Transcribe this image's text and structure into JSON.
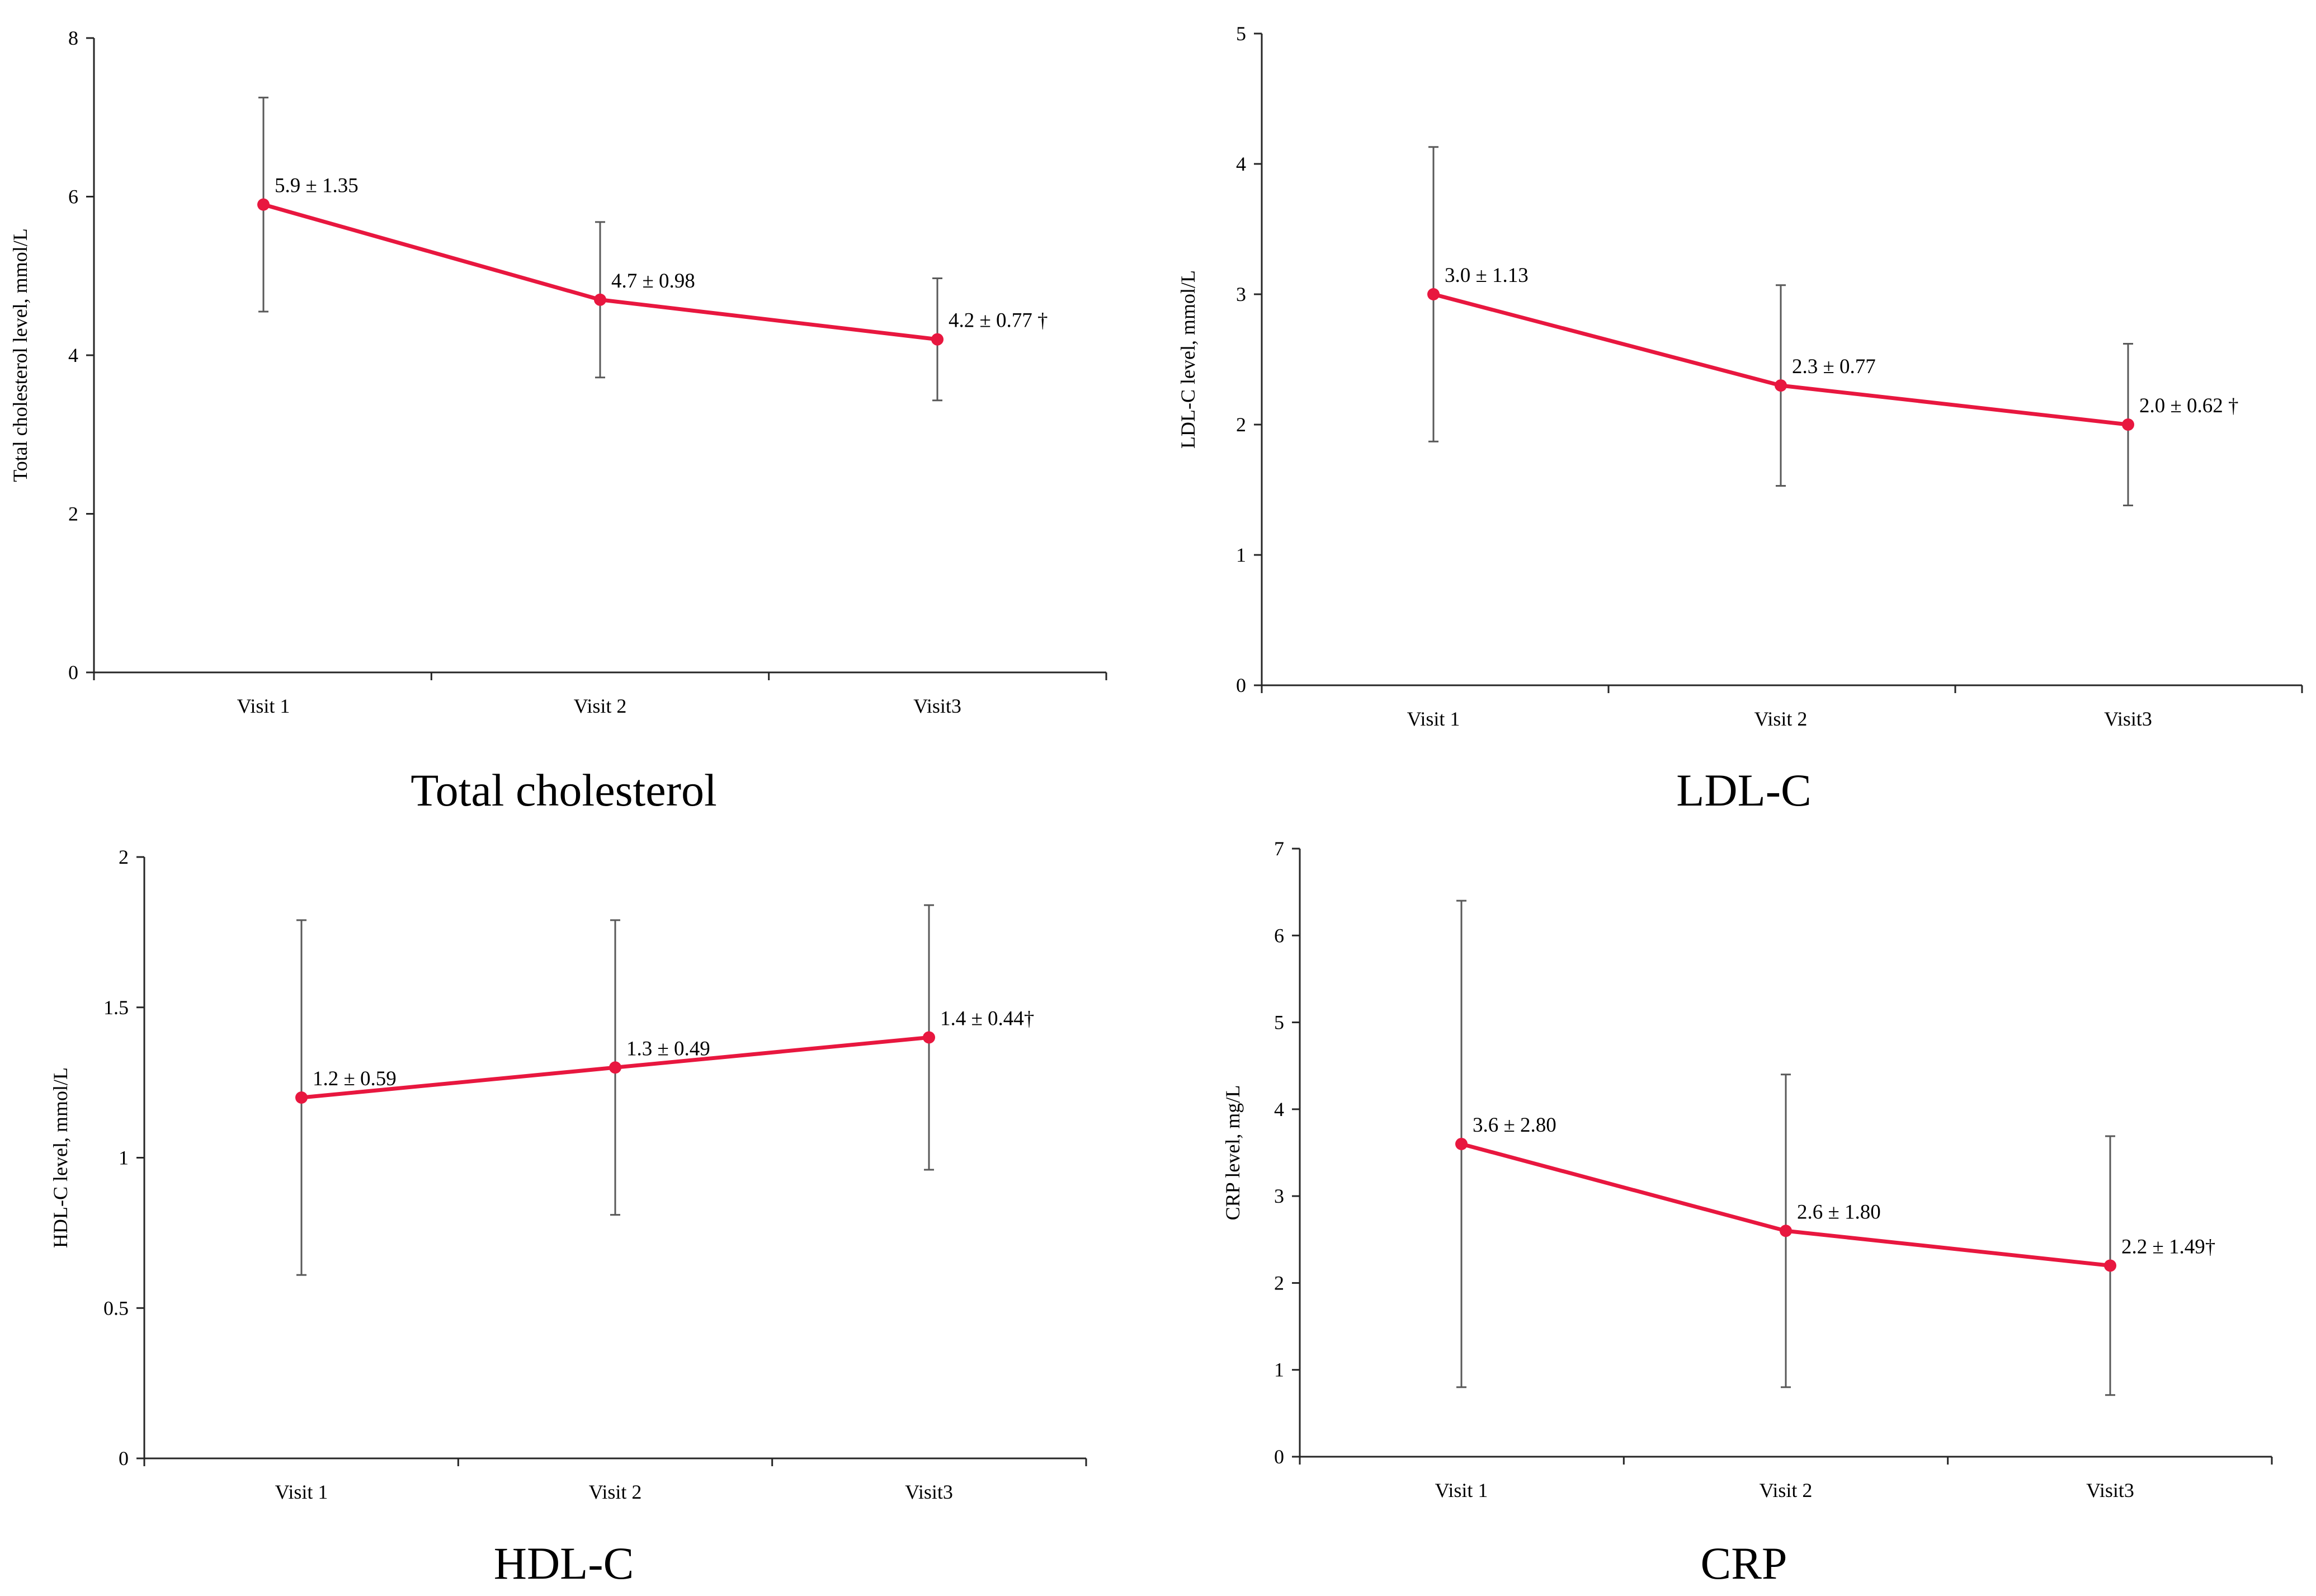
{
  "chart_data": [
    {
      "type": "line",
      "caption": "Total cholesterol",
      "ylabel": "Total cholesterol level, mmol/L",
      "categories": [
        "Visit 1",
        "Visit 2",
        "Visit3"
      ],
      "ylim": [
        0,
        8
      ],
      "yticks": [
        0,
        2,
        4,
        6,
        8
      ],
      "series": [
        {
          "name": "Total cholesterol",
          "values": [
            5.9,
            4.7,
            4.2
          ],
          "errors": [
            1.35,
            0.98,
            0.77
          ]
        }
      ],
      "point_labels": [
        "5.9 ± 1.35",
        "4.7 ± 0.98",
        "4.2 ± 0.77 †"
      ],
      "line_color": "#e8173f",
      "error_color": "#595959"
    },
    {
      "type": "line",
      "caption": "LDL-C",
      "ylabel": "LDL-C level, mmol/L",
      "categories": [
        "Visit 1",
        "Visit 2",
        "Visit3"
      ],
      "ylim": [
        0,
        5
      ],
      "yticks": [
        0,
        1,
        2,
        3,
        4,
        5
      ],
      "series": [
        {
          "name": "LDL-C",
          "values": [
            3.0,
            2.3,
            2.0
          ],
          "errors": [
            1.13,
            0.77,
            0.62
          ]
        }
      ],
      "point_labels": [
        "3.0 ± 1.13",
        "2.3 ± 0.77",
        "2.0 ± 0.62 †"
      ],
      "line_color": "#e8173f",
      "error_color": "#595959"
    },
    {
      "type": "line",
      "caption": "HDL-C",
      "ylabel": "HDL-C level, mmol/L",
      "categories": [
        "Visit 1",
        "Visit 2",
        "Visit3"
      ],
      "ylim": [
        0,
        2
      ],
      "yticks": [
        0,
        0.5,
        1,
        1.5,
        2
      ],
      "series": [
        {
          "name": "HDL-C",
          "values": [
            1.2,
            1.3,
            1.4
          ],
          "errors": [
            0.59,
            0.49,
            0.44
          ]
        }
      ],
      "point_labels": [
        "1.2 ± 0.59",
        "1.3 ± 0.49",
        "1.4 ± 0.44†"
      ],
      "line_color": "#e8173f",
      "error_color": "#595959"
    },
    {
      "type": "line",
      "caption": "CRP",
      "ylabel": "CRP level, mg/L",
      "categories": [
        "Visit 1",
        "Visit 2",
        "Visit3"
      ],
      "ylim": [
        0,
        7
      ],
      "yticks": [
        0,
        1,
        2,
        3,
        4,
        5,
        6,
        7
      ],
      "series": [
        {
          "name": "CRP",
          "values": [
            3.6,
            2.6,
            2.2
          ],
          "errors": [
            2.8,
            1.8,
            1.49
          ]
        }
      ],
      "point_labels": [
        "3.6 ± 2.80",
        "2.6 ± 1.80",
        "2.2 ± 1.49†"
      ],
      "line_color": "#e8173f",
      "error_color": "#595959"
    }
  ]
}
